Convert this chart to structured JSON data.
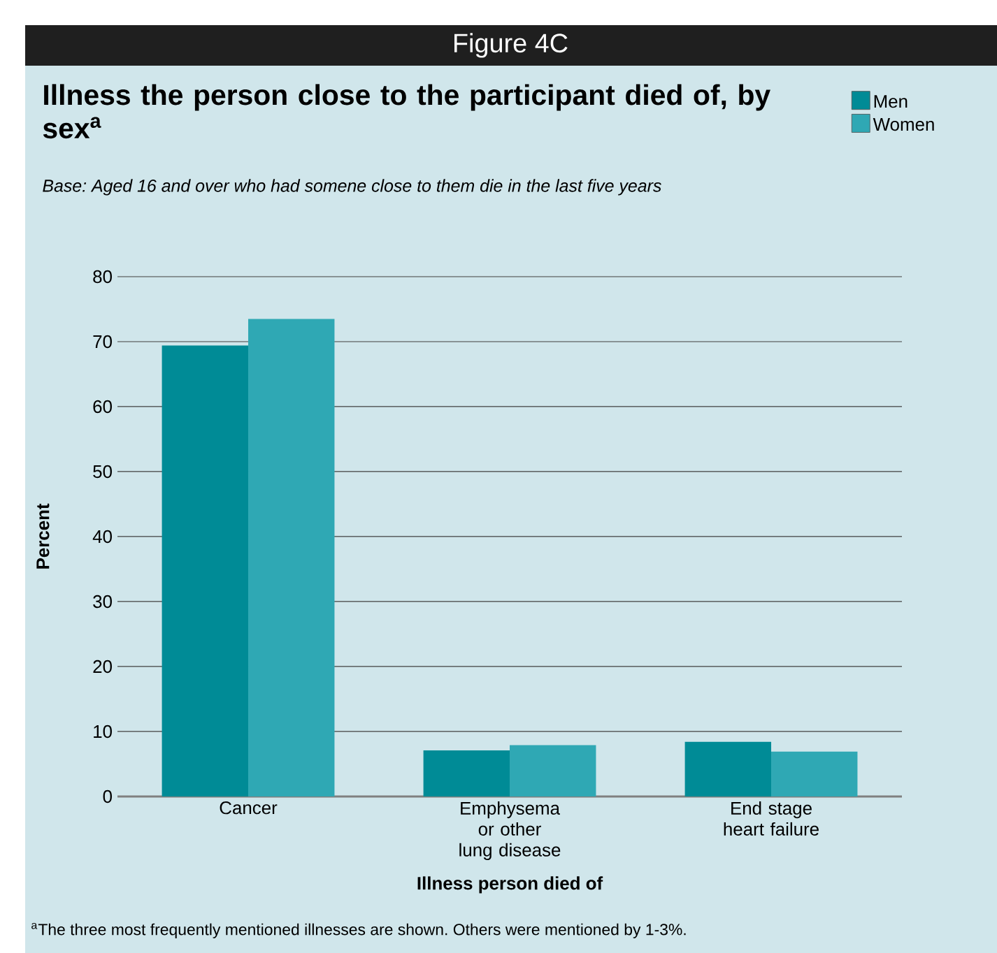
{
  "chart_data": {
    "type": "bar",
    "title": "Illness the person close to the participant died of, by sex$^{a}$",
    "subtitle": "Base: Aged 16 and over who had somene close to them die in the last five years",
    "annotations": [
      "Figure 4C",
      "$^{a}$The three most frequently mentioned illnesses are shown. Others were mentioned by 1-3%."
    ],
    "xlabel": "Illness person died of",
    "ylabel": "Percent",
    "categories": [
      "Cancer",
      "Emphysema or other lung disease",
      "End stage heart failure"
    ],
    "series": [
      {
        "name": "Men",
        "color": "#008b96",
        "values": [
          69.4,
          7.1,
          8.4
        ]
      },
      {
        "name": "Women",
        "color": "#2fa8b4",
        "values": [
          73.5,
          7.9,
          6.9
        ]
      }
    ],
    "ylim": [
      0,
      80
    ],
    "yticks": [
      0,
      10,
      20,
      30,
      40,
      50,
      60,
      70,
      80
    ],
    "grid": "y",
    "legend": "top right"
  }
}
